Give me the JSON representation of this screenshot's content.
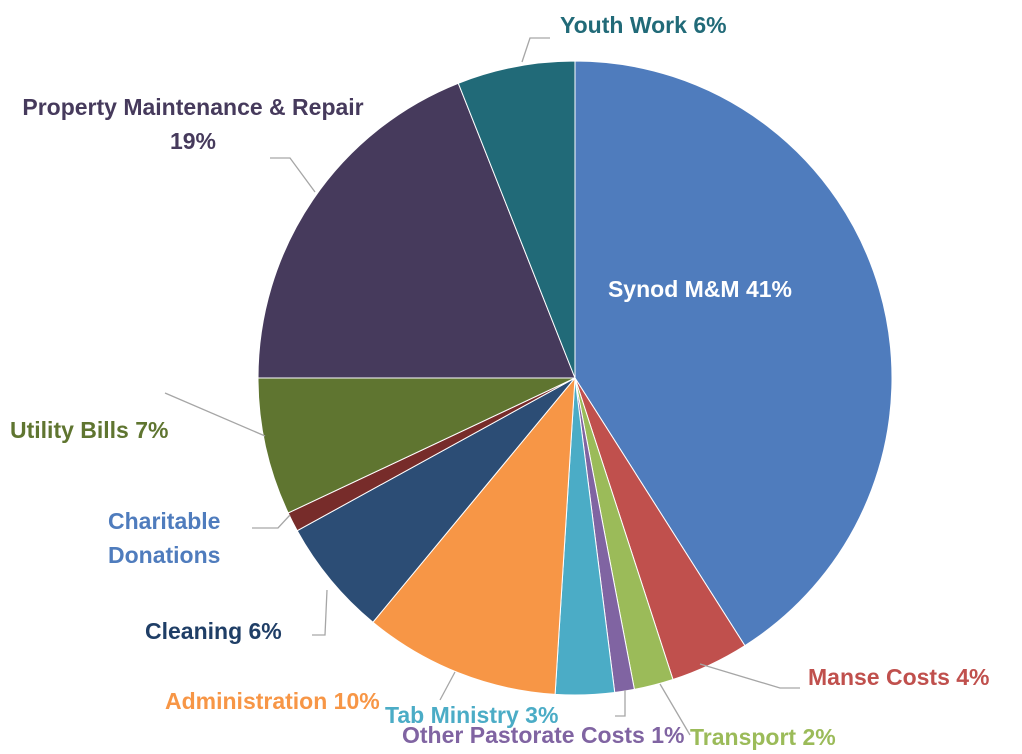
{
  "chart_data": {
    "type": "pie",
    "categories": [
      "Synod M&M",
      "Manse Costs",
      "Transport",
      "Other Pastorate Costs",
      "Tab Ministry",
      "Administration",
      "Cleaning",
      "Charitable Donations",
      "Utility Bills",
      "Property Maintenance & Repair",
      "Youth Work"
    ],
    "values": [
      41,
      4,
      2,
      1,
      3,
      10,
      6,
      1,
      7,
      19,
      6
    ],
    "value_labels": [
      "41%",
      "4%",
      "2%",
      "1%",
      "3%",
      "10%",
      "6%",
      null,
      "7%",
      "19%",
      "6%"
    ],
    "colors": [
      "#4f7cbd",
      "#c0504d",
      "#9bbb59",
      "#8064a2",
      "#4bacc6",
      "#f79646",
      "#2c4d75",
      "#772c2a",
      "#5f7530",
      "#463a5c",
      "#216a78"
    ],
    "label_colors": [
      "#ffffff",
      "#c0504d",
      "#9bbb59",
      "#8064a2",
      "#4bacc6",
      "#f79646",
      "#1f3e66",
      "#4f7cbd",
      "#5f7530",
      "#463a5c",
      "#216a78"
    ]
  }
}
